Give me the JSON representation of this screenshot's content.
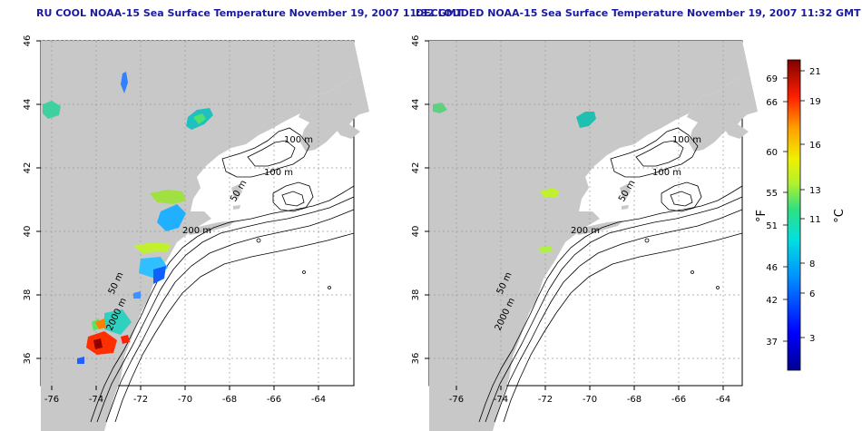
{
  "titles": {
    "left": "RU COOL NOAA-15 Sea Surface Temperature November 19, 2007 11:32 GMT",
    "right": "DECLOUDED NOAA-15 Sea Surface Temperature November 19, 2007 11:32 GMT"
  },
  "axes": {
    "lon_ticks": [
      "-76",
      "-74",
      "-72",
      "-70",
      "-68",
      "-66",
      "-64"
    ],
    "lat_ticks": [
      "46",
      "44",
      "42",
      "40",
      "38",
      "36"
    ]
  },
  "contour_labels": {
    "c100a": "100 m",
    "c100b": "100 m",
    "c50a": "50 m",
    "c200": "200 m",
    "c50b": "50 m",
    "c2000": "2000 m"
  },
  "colorbar": {
    "fahrenheit": [
      "69",
      "66",
      "60",
      "55",
      "51",
      "46",
      "42",
      "37"
    ],
    "celsius": [
      "21",
      "19",
      "16",
      "13",
      "11",
      "8",
      "6",
      "3"
    ],
    "unit_f": "°F",
    "unit_c": "°C"
  },
  "colors": {
    "land": "#c8c8c8",
    "title": "#1a1aa0"
  }
}
